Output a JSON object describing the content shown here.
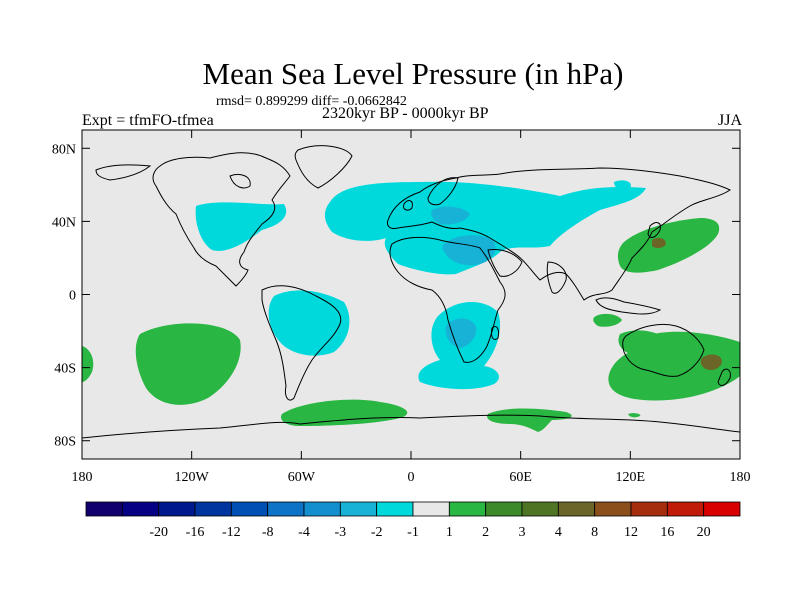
{
  "title": "Mean Sea Level Pressure (in hPa)",
  "stats_text": "rmsd= 0.899299 diff= -0.0662842",
  "experiment_label": "Expt = tfmFO-tfmea",
  "period_label": "2320kyr BP - 0000kyr BP",
  "season_label": "JJA",
  "colors": {
    "background": "#e8e8e8",
    "level_minus1_to_minus2": "#00d9dc",
    "level_minus2_to_minus3": "#18b2d6",
    "level_1_to_2": "#29b642",
    "level_2_to_3": "#3d8a2a",
    "level_3_to_4": "#6b6628"
  },
  "map": {
    "projection": "cylindrical-equidistant",
    "lon_range": [
      -180,
      180
    ],
    "lat_range": [
      -90,
      90
    ],
    "x_tick_labels": [
      "180",
      "120W",
      "60W",
      "0",
      "60E",
      "120E",
      "180"
    ],
    "y_tick_labels": [
      "80N",
      "40N",
      "0",
      "40S",
      "80S"
    ],
    "x_tick_values": [
      -180,
      -120,
      -60,
      0,
      60,
      120,
      180
    ],
    "y_tick_values": [
      80,
      40,
      0,
      -40,
      -80
    ]
  },
  "colorbar": {
    "labels": [
      "-20",
      "-16",
      "-12",
      "-8",
      "-4",
      "-3",
      "-2",
      "-1",
      "1",
      "2",
      "3",
      "4",
      "8",
      "12",
      "16",
      "20"
    ],
    "colors": [
      "#11006e",
      "#050084",
      "#00198c",
      "#0035a0",
      "#004fb5",
      "#0c73c6",
      "#138fd0",
      "#18b2d6",
      "#00d9dc",
      "#e8e8e8",
      "#29b642",
      "#3d8a2a",
      "#4f7524",
      "#6b6628",
      "#8a4f1a",
      "#a52e0f",
      "#bf1b08",
      "#d80000"
    ]
  }
}
